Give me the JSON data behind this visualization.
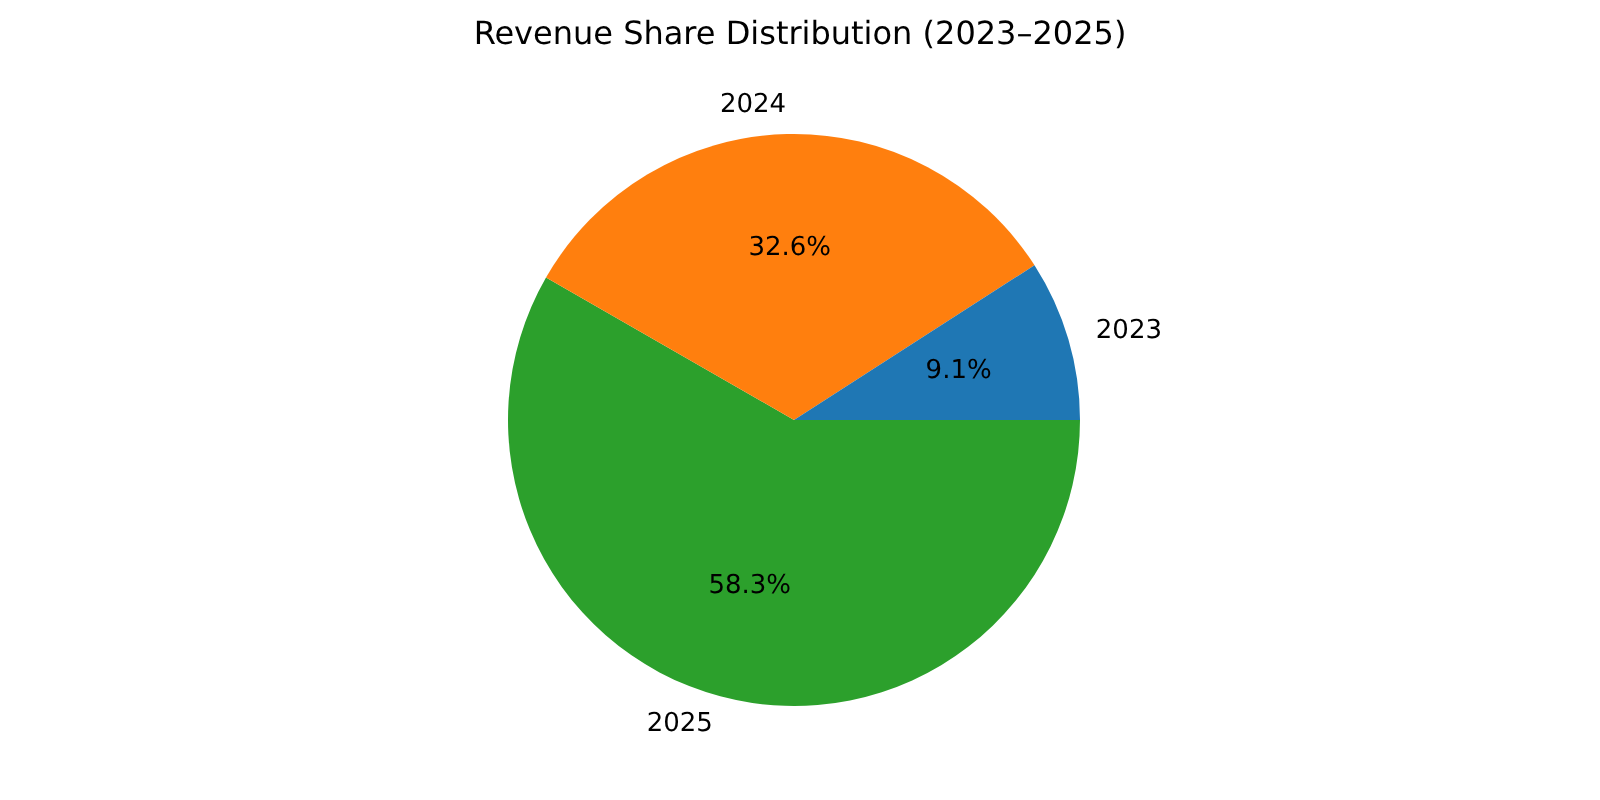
{
  "chart_data": {
    "type": "pie",
    "title": "Revenue Share Distribution (2023–2025)",
    "categories": [
      "2023",
      "2024",
      "2025"
    ],
    "values": [
      9.1,
      32.6,
      58.3
    ],
    "value_labels": [
      "9.1%",
      "32.6%",
      "58.3%"
    ],
    "colors": [
      "#1f77b4",
      "#ff7f0e",
      "#2ca02c"
    ]
  }
}
